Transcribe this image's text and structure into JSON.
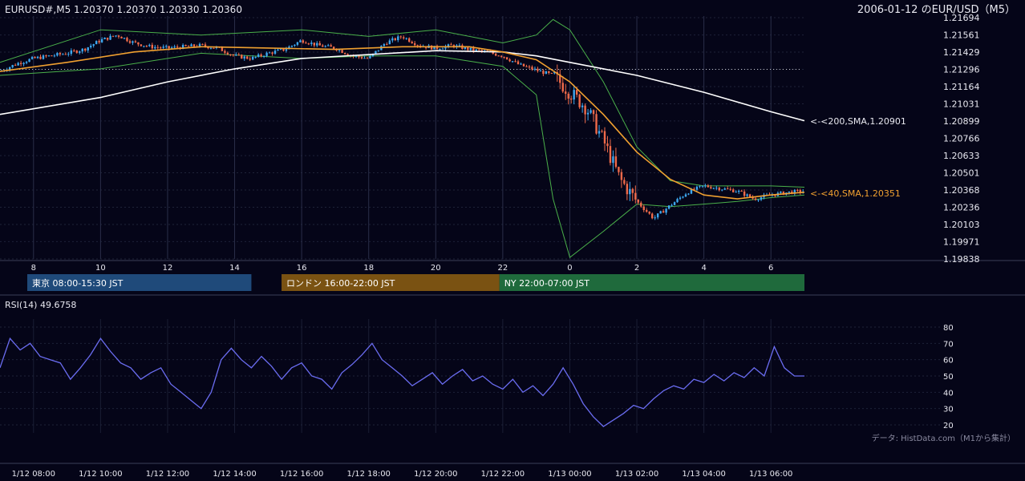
{
  "header": {
    "symbol_info": "EURUSD#,M5 1.20370 1.20370 1.20330 1.20360",
    "date_title": "2006-01-12 のEUR/USD（M5）"
  },
  "colors": {
    "background": "#050518",
    "grid": "#1e2238",
    "candle_up": "#3da8f0",
    "candle_down": "#ef6a4a",
    "sma40": "#f0a030",
    "sma200": "#ffffff",
    "bollinger": "#4ab04a",
    "rsi": "#6a6cf0",
    "session_tokyo": "#1f4a7a",
    "session_london": "#7a5212",
    "session_ny": "#1f6a3c"
  },
  "main_chart": {
    "y_ticks": [
      "1.21694",
      "1.21561",
      "1.21429",
      "1.21296",
      "1.21164",
      "1.21031",
      "1.20899",
      "1.20766",
      "1.20633",
      "1.20501",
      "1.20368",
      "1.20236",
      "1.20103",
      "1.19971",
      "1.19838"
    ],
    "x_ticks": [
      "8",
      "10",
      "12",
      "14",
      "16",
      "18",
      "20",
      "22",
      "0",
      "2",
      "4",
      "6"
    ],
    "sma200_label": "<-<200,SMA,1.20901",
    "sma40_label": "<-<40,SMA,1.20351"
  },
  "sessions": [
    {
      "label": "東京 08:00-15:30 JST"
    },
    {
      "label": "ロンドン 16:00-22:00 JST"
    },
    {
      "label": "NY 22:00-07:00 JST"
    }
  ],
  "rsi_panel": {
    "title": "RSI(14) 49.6758",
    "y_ticks": [
      "80",
      "70",
      "60",
      "50",
      "40",
      "30",
      "20"
    ],
    "source_note": "データ: HistData.com（M1から集計）",
    "x_ticks": [
      "1/12 08:00",
      "1/12 10:00",
      "1/12 12:00",
      "1/12 14:00",
      "1/12 16:00",
      "1/12 18:00",
      "1/12 20:00",
      "1/12 22:00",
      "1/13 00:00",
      "1/13 02:00",
      "1/13 04:00",
      "1/13 06:00"
    ]
  },
  "chart_data": {
    "type": "line",
    "title": "2006-01-12 のEUR/USD（M5）",
    "x_range": [
      "1/12 07:00",
      "1/13 07:00"
    ],
    "ylim_price": [
      1.19838,
      1.21694
    ],
    "price_path_close": [
      [
        0,
        1.2128
      ],
      [
        0.5,
        1.2134
      ],
      [
        1,
        1.2138
      ],
      [
        1.5,
        1.214
      ],
      [
        2,
        1.2142
      ],
      [
        2.5,
        1.2145
      ],
      [
        3,
        1.2152
      ],
      [
        3.5,
        1.2156
      ],
      [
        4,
        1.215
      ],
      [
        4.5,
        1.2147
      ],
      [
        5,
        1.2146
      ],
      [
        5.5,
        1.2147
      ],
      [
        6,
        1.2148
      ],
      [
        6.5,
        1.2146
      ],
      [
        7,
        1.214
      ],
      [
        7.5,
        1.2138
      ],
      [
        8,
        1.2142
      ],
      [
        8.5,
        1.2145
      ],
      [
        9,
        1.2152
      ],
      [
        9.5,
        1.2148
      ],
      [
        10,
        1.2146
      ],
      [
        10.5,
        1.214
      ],
      [
        11,
        1.2138
      ],
      [
        11.5,
        1.215
      ],
      [
        12,
        1.2155
      ],
      [
        12.5,
        1.2148
      ],
      [
        13,
        1.2146
      ],
      [
        13.5,
        1.2148
      ],
      [
        14,
        1.2145
      ],
      [
        14.5,
        1.2143
      ],
      [
        15,
        1.214
      ],
      [
        15.5,
        1.2133
      ],
      [
        16,
        1.2129
      ],
      [
        16.5,
        1.2125
      ],
      [
        17,
        1.2112
      ],
      [
        17.5,
        1.21
      ],
      [
        18,
        1.2075
      ],
      [
        18.5,
        1.2045
      ],
      [
        19,
        1.2028
      ],
      [
        19.5,
        1.2015
      ],
      [
        20,
        1.2025
      ],
      [
        20.5,
        1.2035
      ],
      [
        21,
        1.204
      ],
      [
        21.5,
        1.2038
      ],
      [
        22,
        1.2036
      ],
      [
        22.5,
        1.203
      ],
      [
        23,
        1.2033
      ],
      [
        23.5,
        1.2035
      ],
      [
        24,
        1.2036
      ]
    ],
    "sma200_path": [
      [
        0,
        1.2095
      ],
      [
        3,
        1.2108
      ],
      [
        5,
        1.212
      ],
      [
        7,
        1.213
      ],
      [
        9,
        1.2138
      ],
      [
        11,
        1.2141
      ],
      [
        13,
        1.2144
      ],
      [
        15,
        1.2143
      ],
      [
        16,
        1.214
      ],
      [
        17,
        1.2135
      ],
      [
        19,
        1.2125
      ],
      [
        21,
        1.2112
      ],
      [
        23,
        1.2097
      ],
      [
        24,
        1.20901
      ]
    ],
    "sma40_path": [
      [
        0,
        1.2128
      ],
      [
        2,
        1.2135
      ],
      [
        4,
        1.2143
      ],
      [
        6,
        1.2147
      ],
      [
        8,
        1.2146
      ],
      [
        10,
        1.2145
      ],
      [
        12,
        1.2147
      ],
      [
        14,
        1.2147
      ],
      [
        15,
        1.2143
      ],
      [
        16,
        1.2137
      ],
      [
        17,
        1.212
      ],
      [
        18,
        1.2095
      ],
      [
        19,
        1.2066
      ],
      [
        20,
        1.2045
      ],
      [
        21,
        1.2033
      ],
      [
        22,
        1.203
      ],
      [
        23,
        1.2033
      ],
      [
        24,
        1.20351
      ]
    ],
    "bollinger_upper": [
      [
        0,
        1.2135
      ],
      [
        3,
        1.216
      ],
      [
        6,
        1.2156
      ],
      [
        9,
        1.216
      ],
      [
        11,
        1.2155
      ],
      [
        13,
        1.216
      ],
      [
        15,
        1.215
      ],
      [
        16,
        1.2156
      ],
      [
        16.5,
        1.2168
      ],
      [
        17,
        1.216
      ],
      [
        18,
        1.212
      ],
      [
        19,
        1.207
      ],
      [
        20,
        1.2044
      ],
      [
        21,
        1.204
      ],
      [
        22,
        1.204
      ],
      [
        23,
        1.204
      ],
      [
        24,
        1.2039
      ]
    ],
    "bollinger_lower": [
      [
        0,
        1.2125
      ],
      [
        3,
        1.213
      ],
      [
        6,
        1.2142
      ],
      [
        9,
        1.2138
      ],
      [
        11,
        1.214
      ],
      [
        13,
        1.214
      ],
      [
        15,
        1.2132
      ],
      [
        16,
        1.211
      ],
      [
        16.5,
        1.203
      ],
      [
        17,
        1.1985
      ],
      [
        18,
        1.2005
      ],
      [
        19,
        1.2026
      ],
      [
        20,
        1.2024
      ],
      [
        21,
        1.2026
      ],
      [
        22,
        1.2028
      ],
      [
        23,
        1.2031
      ],
      [
        24,
        1.2033
      ]
    ],
    "reference_line": 1.21296,
    "rsi_ylim": [
      15,
      85
    ],
    "rsi_path": [
      [
        0,
        55
      ],
      [
        0.3,
        73
      ],
      [
        0.6,
        66
      ],
      [
        0.9,
        70
      ],
      [
        1.2,
        62
      ],
      [
        1.5,
        60
      ],
      [
        1.8,
        58
      ],
      [
        2.1,
        48
      ],
      [
        2.4,
        55
      ],
      [
        2.7,
        63
      ],
      [
        3.0,
        73
      ],
      [
        3.3,
        65
      ],
      [
        3.6,
        58
      ],
      [
        3.9,
        55
      ],
      [
        4.2,
        48
      ],
      [
        4.5,
        52
      ],
      [
        4.8,
        55
      ],
      [
        5.1,
        45
      ],
      [
        5.4,
        40
      ],
      [
        5.7,
        35
      ],
      [
        6.0,
        30
      ],
      [
        6.3,
        40
      ],
      [
        6.6,
        60
      ],
      [
        6.9,
        67
      ],
      [
        7.2,
        60
      ],
      [
        7.5,
        55
      ],
      [
        7.8,
        62
      ],
      [
        8.1,
        56
      ],
      [
        8.4,
        48
      ],
      [
        8.7,
        55
      ],
      [
        9.0,
        58
      ],
      [
        9.3,
        50
      ],
      [
        9.6,
        48
      ],
      [
        9.9,
        42
      ],
      [
        10.2,
        52
      ],
      [
        10.5,
        57
      ],
      [
        10.8,
        63
      ],
      [
        11.1,
        70
      ],
      [
        11.4,
        60
      ],
      [
        11.7,
        55
      ],
      [
        12.0,
        50
      ],
      [
        12.3,
        44
      ],
      [
        12.6,
        48
      ],
      [
        12.9,
        52
      ],
      [
        13.2,
        45
      ],
      [
        13.5,
        50
      ],
      [
        13.8,
        54
      ],
      [
        14.1,
        47
      ],
      [
        14.4,
        50
      ],
      [
        14.7,
        45
      ],
      [
        15.0,
        42
      ],
      [
        15.3,
        48
      ],
      [
        15.6,
        40
      ],
      [
        15.9,
        44
      ],
      [
        16.2,
        38
      ],
      [
        16.5,
        45
      ],
      [
        16.8,
        55
      ],
      [
        17.1,
        45
      ],
      [
        17.4,
        33
      ],
      [
        17.7,
        25
      ],
      [
        18.0,
        19
      ],
      [
        18.3,
        23
      ],
      [
        18.6,
        27
      ],
      [
        18.9,
        32
      ],
      [
        19.2,
        30
      ],
      [
        19.5,
        36
      ],
      [
        19.8,
        41
      ],
      [
        20.1,
        44
      ],
      [
        20.4,
        42
      ],
      [
        20.7,
        48
      ],
      [
        21.0,
        46
      ],
      [
        21.3,
        51
      ],
      [
        21.6,
        47
      ],
      [
        21.9,
        52
      ],
      [
        22.2,
        49
      ],
      [
        22.5,
        55
      ],
      [
        22.8,
        50
      ],
      [
        23.1,
        68
      ],
      [
        23.4,
        55
      ],
      [
        23.7,
        50
      ],
      [
        24,
        50
      ]
    ]
  }
}
